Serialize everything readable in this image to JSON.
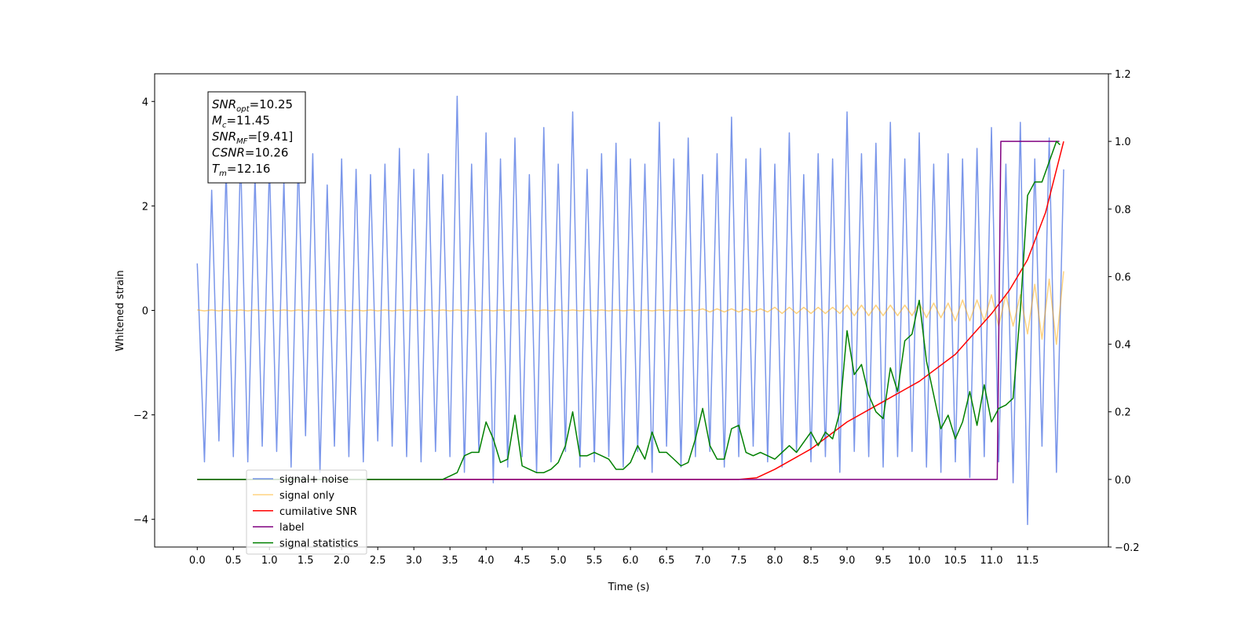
{
  "chart_data": {
    "type": "line",
    "xlabel": "Time (s)",
    "ylabel": "Whitened strain",
    "xlim": [
      -0.59,
      12.62
    ],
    "ylim": [
      -4.53,
      4.53
    ],
    "y2lim": [
      -0.2,
      1.2
    ],
    "xticks": [
      {
        "value": 0,
        "label": "0.0"
      },
      {
        "value": 0.5,
        "label": "0.5"
      },
      {
        "value": 1,
        "label": "1.0"
      },
      {
        "value": 1.5,
        "label": "1.5"
      },
      {
        "value": 2,
        "label": "2.0"
      },
      {
        "value": 2.5,
        "label": "2.5"
      },
      {
        "value": 3,
        "label": "3.0"
      },
      {
        "value": 3.5,
        "label": "3.5"
      },
      {
        "value": 4,
        "label": "4.0"
      },
      {
        "value": 4.5,
        "label": "4.5"
      },
      {
        "value": 5,
        "label": "5.0"
      },
      {
        "value": 5.5,
        "label": "5.5"
      },
      {
        "value": 6,
        "label": "6.0"
      },
      {
        "value": 6.5,
        "label": "6.5"
      },
      {
        "value": 7,
        "label": "7.0"
      },
      {
        "value": 7.5,
        "label": "7.5"
      },
      {
        "value": 8,
        "label": "8.0"
      },
      {
        "value": 8.5,
        "label": "8.5"
      },
      {
        "value": 9,
        "label": "9.0"
      },
      {
        "value": 9.5,
        "label": "9.5"
      },
      {
        "value": 10,
        "label": "10.0"
      },
      {
        "value": 10.5,
        "label": "10.5"
      },
      {
        "value": 11,
        "label": "11.0"
      },
      {
        "value": 11.5,
        "label": "11.5"
      }
    ],
    "yticks": [
      4,
      2,
      0,
      {
        "value": -2,
        "label": "−2"
      },
      {
        "value": -4,
        "label": "−4"
      }
    ],
    "y2ticks": [
      1.2,
      {
        "value": 1,
        "label": "1.0"
      },
      0.8,
      0.6,
      0.4,
      0.2,
      {
        "value": 0,
        "label": "0.0"
      },
      {
        "value": -0.2,
        "label": "−0.2"
      }
    ],
    "legend": "lower left",
    "annotations": [
      {
        "symbol": "SNR",
        "subscript": "opt",
        "text": "=10.25"
      },
      {
        "symbol": "M",
        "subscript": "c",
        "text": "=11.45"
      },
      {
        "symbol": "SNR",
        "subscript": "MF",
        "text": "=[9.41]"
      },
      {
        "symbol": "CSNR",
        "text": "=10.26"
      },
      {
        "symbol": "T",
        "subscript": "m",
        "text": "=12.16"
      }
    ],
    "x": [
      0,
      0.1,
      0.2,
      0.3,
      0.4,
      0.5,
      0.6,
      0.7,
      0.8,
      0.9,
      1,
      1.1,
      1.2,
      1.3,
      1.4,
      1.5,
      1.6,
      1.7,
      1.8,
      1.9,
      2,
      2.1,
      2.2,
      2.3,
      2.4,
      2.5,
      2.6,
      2.7,
      2.8,
      2.9,
      3,
      3.1,
      3.2,
      3.3,
      3.4,
      3.5,
      3.6,
      3.7,
      3.8,
      3.9,
      4,
      4.1,
      4.2,
      4.3,
      4.4,
      4.5,
      4.6,
      4.7,
      4.8,
      4.9,
      5,
      5.1,
      5.2,
      5.3,
      5.4,
      5.5,
      5.6,
      5.7,
      5.8,
      5.9,
      6,
      6.1,
      6.2,
      6.3,
      6.4,
      6.5,
      6.6,
      6.7,
      6.8,
      6.9,
      7,
      7.1,
      7.2,
      7.3,
      7.4,
      7.5,
      7.6,
      7.7,
      7.8,
      7.9,
      8,
      8.1,
      8.2,
      8.3,
      8.4,
      8.5,
      8.6,
      8.7,
      8.8,
      8.9,
      9,
      9.1,
      9.2,
      9.3,
      9.4,
      9.5,
      9.6,
      9.7,
      9.8,
      9.9,
      10,
      10.1,
      10.2,
      10.3,
      10.4,
      10.5,
      10.6,
      10.7,
      10.8,
      10.9,
      11,
      11.1,
      11.2,
      11.3,
      11.4,
      11.5,
      11.6,
      11.7,
      11.8,
      11.9,
      12
    ],
    "series": [
      {
        "name": "signal+ noise",
        "color": "#4169e1",
        "alpha": 0.7,
        "axis": "y",
        "values": [
          0.9,
          -2.9,
          2.3,
          -2.5,
          2.7,
          -2.8,
          3.0,
          -2.9,
          2.6,
          -2.6,
          2.8,
          -2.7,
          2.5,
          -3.0,
          2.9,
          -2.4,
          3.0,
          -3.1,
          2.4,
          -2.6,
          2.9,
          -2.8,
          2.7,
          -2.9,
          2.6,
          -2.5,
          2.8,
          -2.6,
          3.1,
          -2.8,
          2.7,
          -2.9,
          3.0,
          -2.7,
          2.6,
          -2.8,
          4.1,
          -3.1,
          2.8,
          -2.7,
          3.4,
          -3.3,
          2.9,
          -3.0,
          3.3,
          -2.8,
          2.6,
          -3.1,
          3.5,
          -2.9,
          2.8,
          -2.7,
          3.8,
          -3.0,
          2.7,
          -2.9,
          3.0,
          -2.8,
          3.2,
          -3.0,
          2.9,
          -2.7,
          2.8,
          -3.1,
          3.6,
          -2.6,
          2.9,
          -3.0,
          3.3,
          -2.8,
          2.6,
          -2.7,
          3.0,
          -3.0,
          3.7,
          -2.8,
          2.9,
          -2.6,
          3.1,
          -2.9,
          2.8,
          -3.0,
          3.4,
          -2.7,
          2.6,
          -2.9,
          3.0,
          -2.8,
          2.9,
          -3.1,
          3.8,
          -2.7,
          3.0,
          -2.8,
          3.2,
          -3.0,
          3.6,
          -2.8,
          2.9,
          -2.7,
          3.4,
          -3.0,
          2.8,
          -3.1,
          3.0,
          -2.9,
          2.9,
          -3.2,
          3.1,
          -2.8,
          3.5,
          -2.9,
          2.8,
          -3.3,
          3.6,
          -4.1,
          2.9,
          -2.6,
          3.3,
          -3.1,
          2.7
        ]
      },
      {
        "name": "signal only",
        "color": "#ffa500",
        "alpha": 0.5,
        "axis": "y",
        "values": [
          0.01,
          -0.01,
          0.01,
          -0.01,
          0.01,
          -0.01,
          0.01,
          -0.01,
          0.01,
          -0.01,
          0.01,
          -0.01,
          0.01,
          -0.01,
          0.01,
          -0.01,
          0.01,
          -0.01,
          0.01,
          -0.01,
          0.01,
          -0.01,
          0.01,
          -0.01,
          0.01,
          -0.01,
          0.01,
          -0.01,
          0.01,
          -0.01,
          0.01,
          -0.01,
          0.01,
          -0.01,
          0.01,
          -0.01,
          0.01,
          -0.01,
          0.01,
          -0.01,
          0.01,
          -0.01,
          0.01,
          -0.01,
          0.01,
          -0.01,
          0.01,
          -0.01,
          0.01,
          -0.01,
          0.01,
          -0.01,
          0.01,
          -0.01,
          0.01,
          -0.01,
          0.01,
          -0.01,
          0.01,
          -0.01,
          0.01,
          -0.01,
          0.01,
          -0.01,
          0.01,
          -0.01,
          0.01,
          -0.01,
          0.01,
          -0.01,
          0.03,
          -0.03,
          0.03,
          -0.03,
          0.03,
          -0.03,
          0.03,
          -0.03,
          0.03,
          -0.03,
          0.06,
          -0.06,
          0.06,
          -0.06,
          0.06,
          -0.06,
          0.06,
          -0.06,
          0.06,
          -0.06,
          0.1,
          -0.1,
          0.1,
          -0.1,
          0.1,
          -0.1,
          0.1,
          -0.1,
          0.1,
          -0.1,
          0.14,
          -0.14,
          0.14,
          -0.14,
          0.14,
          -0.2,
          0.2,
          -0.2,
          0.2,
          -0.2,
          0.3,
          -0.3,
          0.3,
          -0.3,
          0.3,
          -0.45,
          0.5,
          -0.55,
          0.6,
          -0.65,
          0.75
        ]
      },
      {
        "name": "cumilative SNR",
        "color": "#ff0000",
        "alpha": 1,
        "axis": "y2",
        "x": [
          0,
          7.5,
          7.75,
          8,
          8.5,
          9,
          9.5,
          10,
          10.5,
          11,
          11.25,
          11.5,
          11.75,
          12
        ],
        "values": [
          0,
          0,
          0.005,
          0.03,
          0.09,
          0.17,
          0.23,
          0.29,
          0.37,
          0.49,
          0.56,
          0.65,
          0.79,
          1.0
        ]
      },
      {
        "name": "label",
        "color": "#800080",
        "alpha": 1,
        "axis": "y2",
        "x": [
          0,
          11.08,
          11.13,
          11.94
        ],
        "values": [
          0,
          0,
          1,
          1
        ]
      },
      {
        "name": "signal statistics",
        "color": "#008000",
        "alpha": 1,
        "axis": "y2",
        "x": [
          0,
          3.4,
          3.5,
          3.6,
          3.7,
          3.8,
          3.9,
          4,
          4.1,
          4.2,
          4.3,
          4.4,
          4.5,
          4.6,
          4.7,
          4.8,
          4.9,
          5,
          5.1,
          5.2,
          5.3,
          5.4,
          5.5,
          5.6,
          5.7,
          5.8,
          5.9,
          6,
          6.1,
          6.2,
          6.3,
          6.4,
          6.5,
          6.6,
          6.7,
          6.8,
          6.9,
          7,
          7.1,
          7.2,
          7.3,
          7.4,
          7.5,
          7.6,
          7.7,
          7.8,
          7.9,
          8,
          8.1,
          8.2,
          8.3,
          8.4,
          8.5,
          8.6,
          8.7,
          8.8,
          8.9,
          9,
          9.1,
          9.2,
          9.3,
          9.4,
          9.5,
          9.6,
          9.7,
          9.8,
          9.9,
          10,
          10.1,
          10.2,
          10.3,
          10.4,
          10.5,
          10.6,
          10.7,
          10.8,
          10.9,
          11,
          11.1,
          11.2,
          11.3,
          11.4,
          11.5,
          11.6,
          11.7,
          11.8,
          11.9,
          11.95
        ],
        "values": [
          0,
          0,
          0.01,
          0.02,
          0.07,
          0.08,
          0.08,
          0.17,
          0.12,
          0.05,
          0.06,
          0.19,
          0.04,
          0.03,
          0.02,
          0.02,
          0.03,
          0.05,
          0.1,
          0.2,
          0.07,
          0.07,
          0.08,
          0.07,
          0.06,
          0.03,
          0.03,
          0.05,
          0.1,
          0.06,
          0.14,
          0.08,
          0.08,
          0.06,
          0.04,
          0.05,
          0.12,
          0.21,
          0.1,
          0.06,
          0.06,
          0.15,
          0.16,
          0.08,
          0.07,
          0.08,
          0.07,
          0.06,
          0.08,
          0.1,
          0.08,
          0.11,
          0.14,
          0.1,
          0.14,
          0.12,
          0.2,
          0.44,
          0.31,
          0.34,
          0.25,
          0.2,
          0.18,
          0.33,
          0.26,
          0.41,
          0.43,
          0.53,
          0.35,
          0.25,
          0.15,
          0.19,
          0.12,
          0.17,
          0.26,
          0.16,
          0.28,
          0.17,
          0.21,
          0.22,
          0.24,
          0.5,
          0.84,
          0.88,
          0.88,
          0.94,
          1.0,
          0.99
        ]
      }
    ]
  }
}
